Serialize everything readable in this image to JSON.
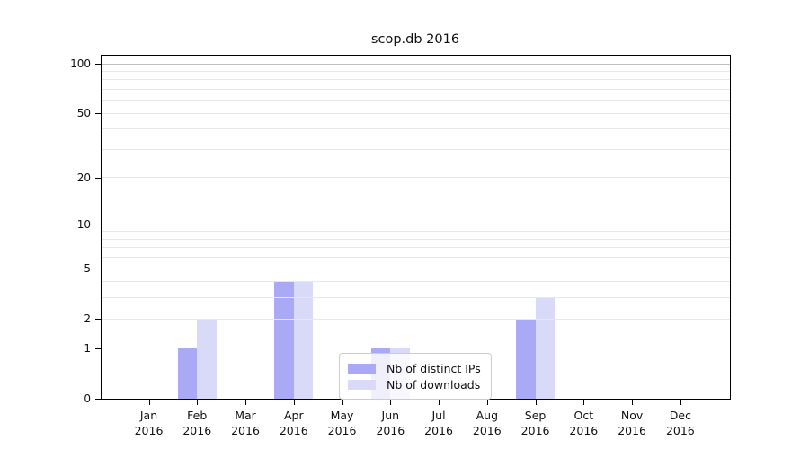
{
  "title": "scop.db 2016",
  "chart_data": {
    "type": "bar",
    "title": "scop.db 2016",
    "categories": [
      "Jan 2016",
      "Feb 2016",
      "Mar 2016",
      "Apr 2016",
      "May 2016",
      "Jun 2016",
      "Jul 2016",
      "Aug 2016",
      "Sep 2016",
      "Oct 2016",
      "Nov 2016",
      "Dec 2016"
    ],
    "series": [
      {
        "name": "Nb of distinct IPs",
        "color": "#a9a9f5",
        "values": [
          0,
          1,
          0,
          4,
          0,
          1,
          0,
          0,
          2,
          0,
          0,
          0
        ]
      },
      {
        "name": "Nb of downloads",
        "color": "#d9d9f8",
        "values": [
          0,
          2,
          0,
          4,
          0,
          1,
          0,
          0,
          3,
          0,
          0,
          0
        ]
      }
    ],
    "xlabel": "",
    "ylabel": "",
    "yscale": "log10(value+1)",
    "ylim": [
      0,
      112
    ],
    "yticks": [
      100,
      50,
      20,
      10,
      5,
      2,
      1,
      0
    ],
    "ytick_labels": [
      "100",
      "50",
      "20",
      "10",
      "5",
      "2",
      "1",
      "0"
    ],
    "minor_gridlines": [
      2,
      3,
      4,
      5,
      6,
      7,
      8,
      9,
      10,
      20,
      30,
      40,
      50,
      60,
      70,
      80,
      90
    ],
    "major_gridlines": [
      1,
      100
    ],
    "grid": true,
    "legend_position": "lower center",
    "legend_entries": [
      "Nb of distinct IPs",
      "Nb of downloads"
    ]
  },
  "colors": {
    "bar_distinct_ips": "#a9a9f5",
    "bar_downloads": "#d9d9f8",
    "grid_minor": "#e8e8e8",
    "grid_major": "#c0c0c0",
    "axis": "#000000",
    "text": "#111111",
    "legend_border": "#cccccc"
  }
}
